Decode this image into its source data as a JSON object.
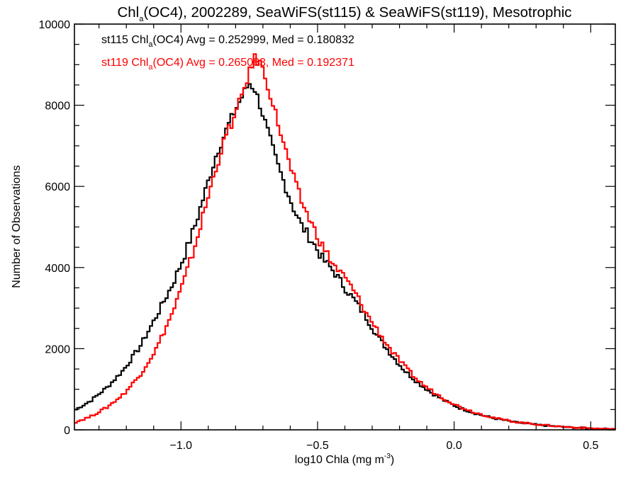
{
  "chart_data": {
    "type": "line",
    "style": "step-histogram",
    "title": {
      "prefix": "Chl",
      "subscript": "a",
      "suffix": "(OC4), 2002289, SeaWiFS(st115) & SeaWiFS(st119), Mesotrophic"
    },
    "xlabel": {
      "text": "log10 Chla (mg m",
      "superscript": "-3",
      "close": ")"
    },
    "ylabel": "Number of Observations",
    "xlim": [
      -1.39,
      0.59
    ],
    "ylim": [
      0,
      10000
    ],
    "x_ticks": [
      {
        "value": -1.0,
        "label": "−1.0"
      },
      {
        "value": -0.5,
        "label": "−0.5"
      },
      {
        "value": 0.0,
        "label": "0.0"
      },
      {
        "value": 0.5,
        "label": "0.5"
      }
    ],
    "x_minor_step": 0.1,
    "y_ticks": [
      {
        "value": 0,
        "label": "0"
      },
      {
        "value": 2000,
        "label": "2000"
      },
      {
        "value": 4000,
        "label": "4000"
      },
      {
        "value": 6000,
        "label": "6000"
      },
      {
        "value": 8000,
        "label": "8000"
      },
      {
        "value": 10000,
        "label": "10000"
      }
    ],
    "y_minor_step": 500,
    "grid": false,
    "legend_position": "top-left",
    "series": [
      {
        "name": "st115",
        "color": "#000000",
        "legend": {
          "prefix": "st115 Chl",
          "subscript": "a",
          "suffix": "(OC4) Avg = 0.252999, Med = 0.180832"
        },
        "x": [
          -1.39,
          -1.33,
          -1.27,
          -1.21,
          -1.15,
          -1.09,
          -1.03,
          -0.99,
          -0.95,
          -0.91,
          -0.87,
          -0.83,
          -0.8,
          -0.77,
          -0.75,
          -0.73,
          -0.71,
          -0.68,
          -0.65,
          -0.62,
          -0.59,
          -0.56,
          -0.52,
          -0.48,
          -0.44,
          -0.4,
          -0.36,
          -0.32,
          -0.28,
          -0.23,
          -0.18,
          -0.13,
          -0.08,
          -0.03,
          0.02,
          0.08,
          0.15,
          0.22,
          0.31,
          0.4,
          0.5,
          0.59
        ],
        "values": [
          480,
          720,
          1050,
          1480,
          2050,
          2800,
          3600,
          4250,
          5000,
          5900,
          6800,
          7450,
          7900,
          8300,
          8550,
          8400,
          8000,
          7300,
          6600,
          6050,
          5500,
          5050,
          4650,
          4200,
          3900,
          3500,
          3150,
          2750,
          2300,
          1850,
          1450,
          1150,
          900,
          700,
          540,
          400,
          280,
          190,
          120,
          70,
          35,
          15
        ]
      },
      {
        "name": "st119",
        "color": "#ff0000",
        "legend": {
          "prefix": "st119 Chl",
          "subscript": "a",
          "suffix": "(OC4) Avg = 0.265083, Med = 0.192371"
        },
        "x": [
          -1.39,
          -1.33,
          -1.27,
          -1.21,
          -1.15,
          -1.09,
          -1.03,
          -0.99,
          -0.95,
          -0.91,
          -0.87,
          -0.83,
          -0.8,
          -0.77,
          -0.75,
          -0.73,
          -0.71,
          -0.68,
          -0.65,
          -0.62,
          -0.59,
          -0.56,
          -0.52,
          -0.48,
          -0.44,
          -0.4,
          -0.36,
          -0.32,
          -0.28,
          -0.23,
          -0.18,
          -0.13,
          -0.08,
          -0.03,
          0.02,
          0.08,
          0.15,
          0.22,
          0.31,
          0.4,
          0.5,
          0.59
        ],
        "values": [
          180,
          330,
          560,
          880,
          1350,
          2000,
          2900,
          3650,
          4500,
          5500,
          6500,
          7350,
          7750,
          8400,
          8800,
          9150,
          9050,
          8450,
          7700,
          6950,
          6250,
          5650,
          5050,
          4500,
          4050,
          3750,
          3350,
          2850,
          2450,
          1950,
          1550,
          1200,
          950,
          740,
          570,
          420,
          290,
          200,
          130,
          75,
          38,
          16
        ]
      }
    ]
  }
}
